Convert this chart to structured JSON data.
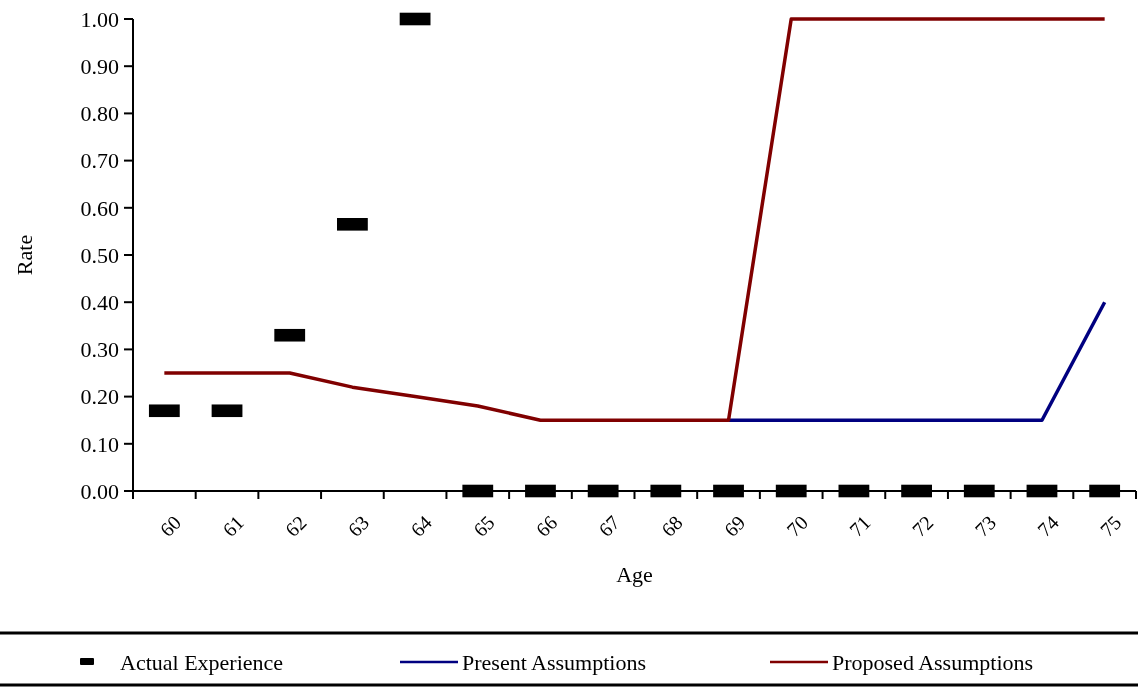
{
  "chart_data": {
    "type": "line",
    "xlabel": "Age",
    "ylabel": "Rate",
    "categories": [
      "60",
      "61",
      "62",
      "63",
      "64",
      "65",
      "66",
      "67",
      "68",
      "69",
      "70",
      "71",
      "72",
      "73",
      "74",
      "75"
    ],
    "series": [
      {
        "name": "Actual Experience",
        "type": "scatter",
        "color": "#000000",
        "values": [
          0.17,
          0.17,
          0.33,
          0.565,
          1.0,
          0,
          0,
          0,
          0,
          0,
          0,
          0,
          0,
          0,
          0,
          0
        ]
      },
      {
        "name": "Present Assumptions",
        "color": "#000080",
        "values": [
          null,
          null,
          null,
          null,
          null,
          null,
          null,
          null,
          null,
          0.15,
          0.15,
          0.15,
          0.15,
          0.15,
          0.15,
          0.4
        ]
      },
      {
        "name": "Proposed Assumptions",
        "color": "#800000",
        "values": [
          0.25,
          0.25,
          0.25,
          0.22,
          0.2,
          0.18,
          0.15,
          0.15,
          0.15,
          0.15,
          1.0,
          1.0,
          1.0,
          1.0,
          1.0,
          1.0
        ]
      }
    ],
    "ylim": [
      0,
      1
    ],
    "yticks": [
      {
        "value": 0,
        "label": "0.00"
      },
      {
        "value": 0.1,
        "label": "0.10"
      },
      {
        "value": 0.2,
        "label": "0.20"
      },
      {
        "value": 0.3,
        "label": "0.30"
      },
      {
        "value": 0.4,
        "label": "0.40"
      },
      {
        "value": 0.5,
        "label": "0.50"
      },
      {
        "value": 0.6,
        "label": "0.60"
      },
      {
        "value": 0.7,
        "label": "0.70"
      },
      {
        "value": 0.8,
        "label": "0.80"
      },
      {
        "value": 0.9,
        "label": "0.90"
      },
      {
        "value": 1,
        "label": "1.00"
      }
    ],
    "legend": "bottom"
  }
}
